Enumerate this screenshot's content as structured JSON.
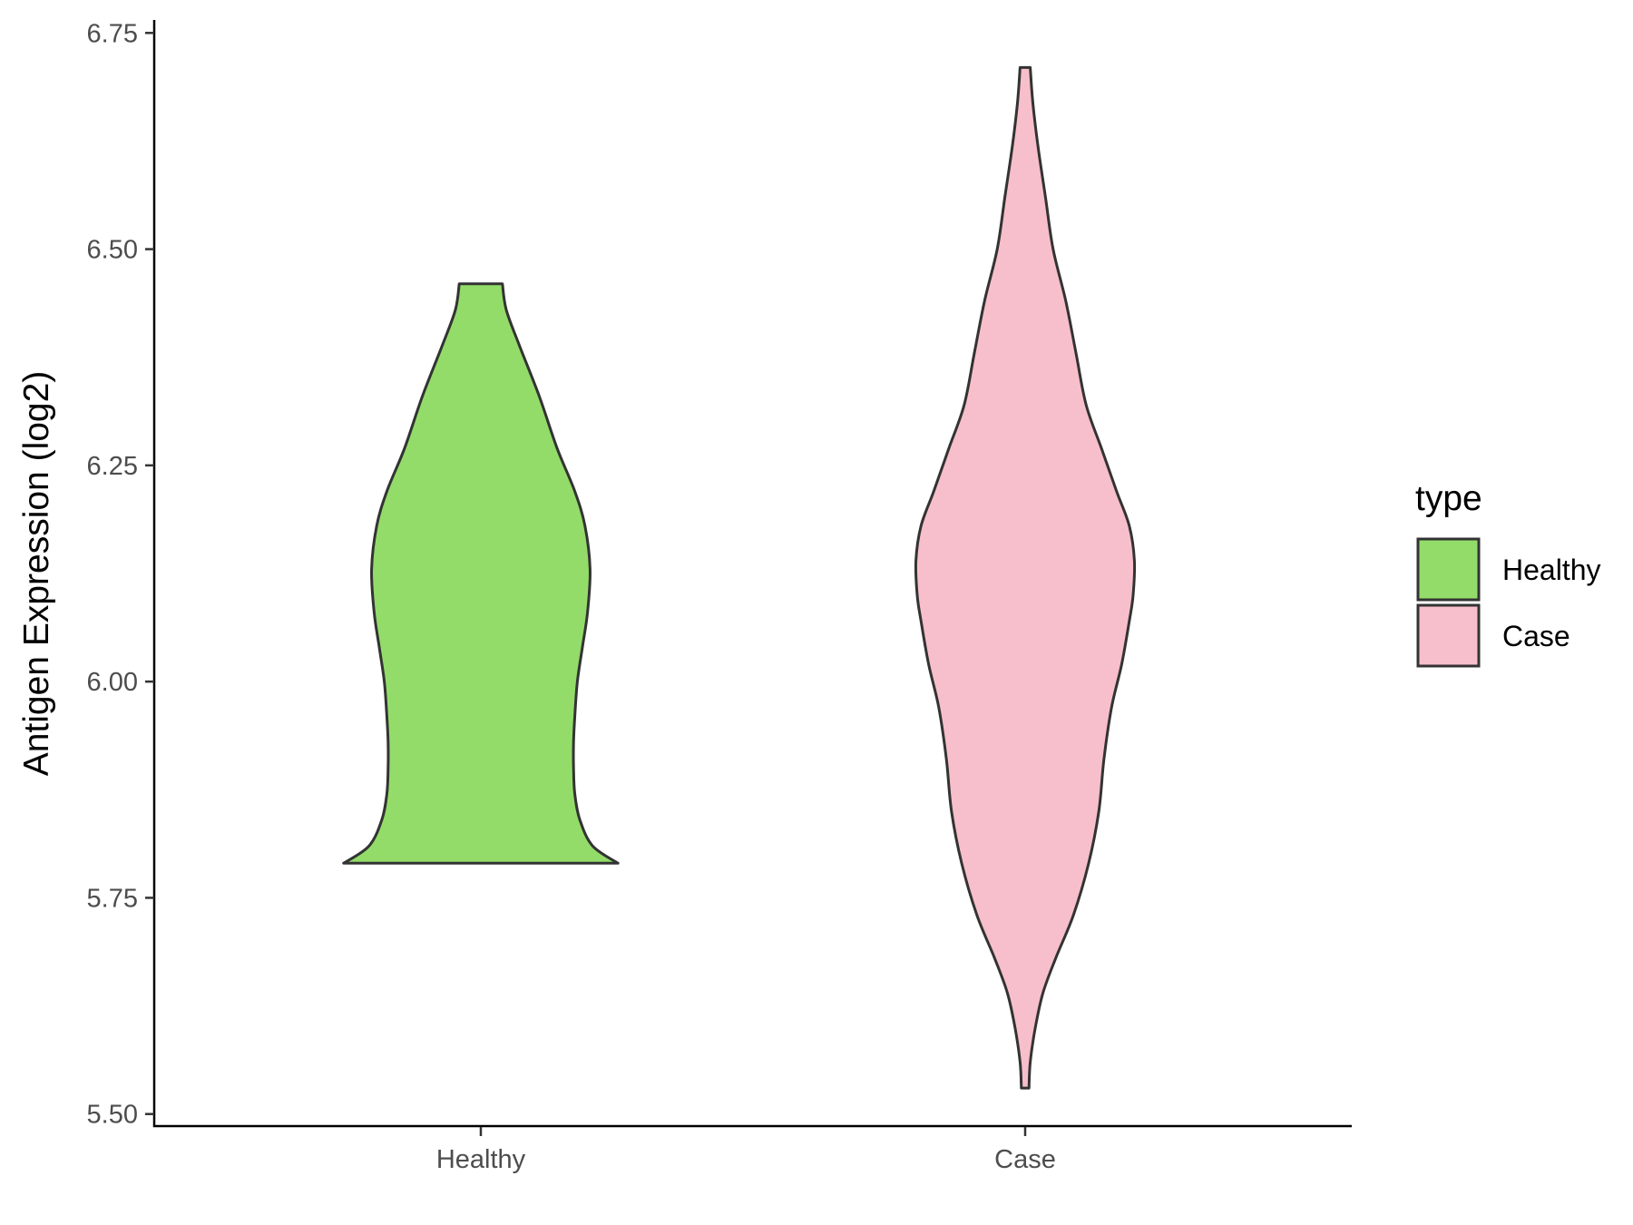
{
  "chart_data": {
    "type": "violin",
    "ylabel": "Antigen Expression (log2)",
    "xlabel": "",
    "title": "",
    "ylim": [
      5.485,
      6.765
    ],
    "yticks": [
      "5.50",
      "5.75",
      "6.00",
      "6.25",
      "6.50",
      "6.75"
    ],
    "categories": [
      "Healthy",
      "Case"
    ],
    "legend": {
      "title": "type",
      "position": "right",
      "entries": [
        "Healthy",
        "Case"
      ]
    },
    "grid": false,
    "series": [
      {
        "name": "Healthy",
        "color": "#93DC6A",
        "min": 5.79,
        "max": 6.46,
        "profile": [
          [
            5.79,
            0.54
          ],
          [
            5.81,
            0.44
          ],
          [
            5.84,
            0.39
          ],
          [
            5.87,
            0.37
          ],
          [
            5.9,
            0.365
          ],
          [
            5.93,
            0.365
          ],
          [
            5.96,
            0.37
          ],
          [
            6.0,
            0.38
          ],
          [
            6.04,
            0.4
          ],
          [
            6.08,
            0.42
          ],
          [
            6.13,
            0.43
          ],
          [
            6.18,
            0.41
          ],
          [
            6.22,
            0.37
          ],
          [
            6.27,
            0.3
          ],
          [
            6.33,
            0.23
          ],
          [
            6.39,
            0.15
          ],
          [
            6.43,
            0.1
          ],
          [
            6.46,
            0.085
          ]
        ]
      },
      {
        "name": "Case",
        "color": "#F7BFCB",
        "min": 5.53,
        "max": 6.71,
        "profile": [
          [
            5.53,
            0.015
          ],
          [
            5.56,
            0.02
          ],
          [
            5.6,
            0.04
          ],
          [
            5.64,
            0.07
          ],
          [
            5.68,
            0.12
          ],
          [
            5.73,
            0.19
          ],
          [
            5.79,
            0.25
          ],
          [
            5.85,
            0.29
          ],
          [
            5.91,
            0.31
          ],
          [
            5.97,
            0.34
          ],
          [
            6.02,
            0.38
          ],
          [
            6.07,
            0.41
          ],
          [
            6.1,
            0.425
          ],
          [
            6.14,
            0.43
          ],
          [
            6.18,
            0.41
          ],
          [
            6.22,
            0.36
          ],
          [
            6.27,
            0.3
          ],
          [
            6.32,
            0.24
          ],
          [
            6.38,
            0.2
          ],
          [
            6.44,
            0.16
          ],
          [
            6.5,
            0.11
          ],
          [
            6.56,
            0.08
          ],
          [
            6.62,
            0.05
          ],
          [
            6.67,
            0.03
          ],
          [
            6.71,
            0.02
          ]
        ]
      }
    ]
  }
}
